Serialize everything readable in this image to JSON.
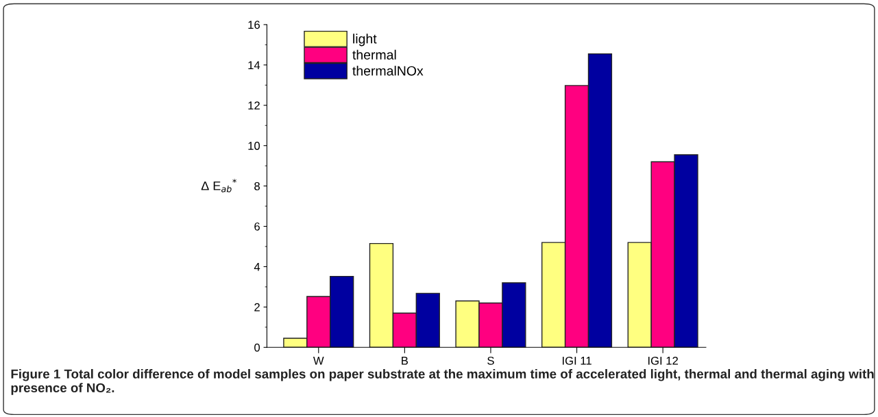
{
  "chart_data": {
    "type": "bar",
    "ylabel": "Δ E$_{ab}$$^{*}$",
    "categories": [
      "W",
      "B",
      "S",
      "IGI 11",
      "IGI 12"
    ],
    "series": [
      {
        "name": "light",
        "color": "#ffff80",
        "values": [
          0.45,
          5.15,
          2.3,
          5.2,
          5.2
        ]
      },
      {
        "name": "thermal",
        "color": "#ff0080",
        "values": [
          2.52,
          1.7,
          2.2,
          12.98,
          9.2
        ]
      },
      {
        "name": "thermalNOx",
        "color": "#0000a0",
        "values": [
          3.52,
          2.68,
          3.2,
          14.55,
          9.55
        ]
      }
    ],
    "ylim": [
      0,
      16
    ],
    "yticks": [
      0,
      2,
      4,
      6,
      8,
      10,
      12,
      14,
      16
    ],
    "grid": false,
    "legend": "top left",
    "annotations": [
      "Figure 1 Total color difference of model samples on paper substrate at the maximum time of accelerated light, thermal and thermal aging with presence of NO₂."
    ]
  }
}
